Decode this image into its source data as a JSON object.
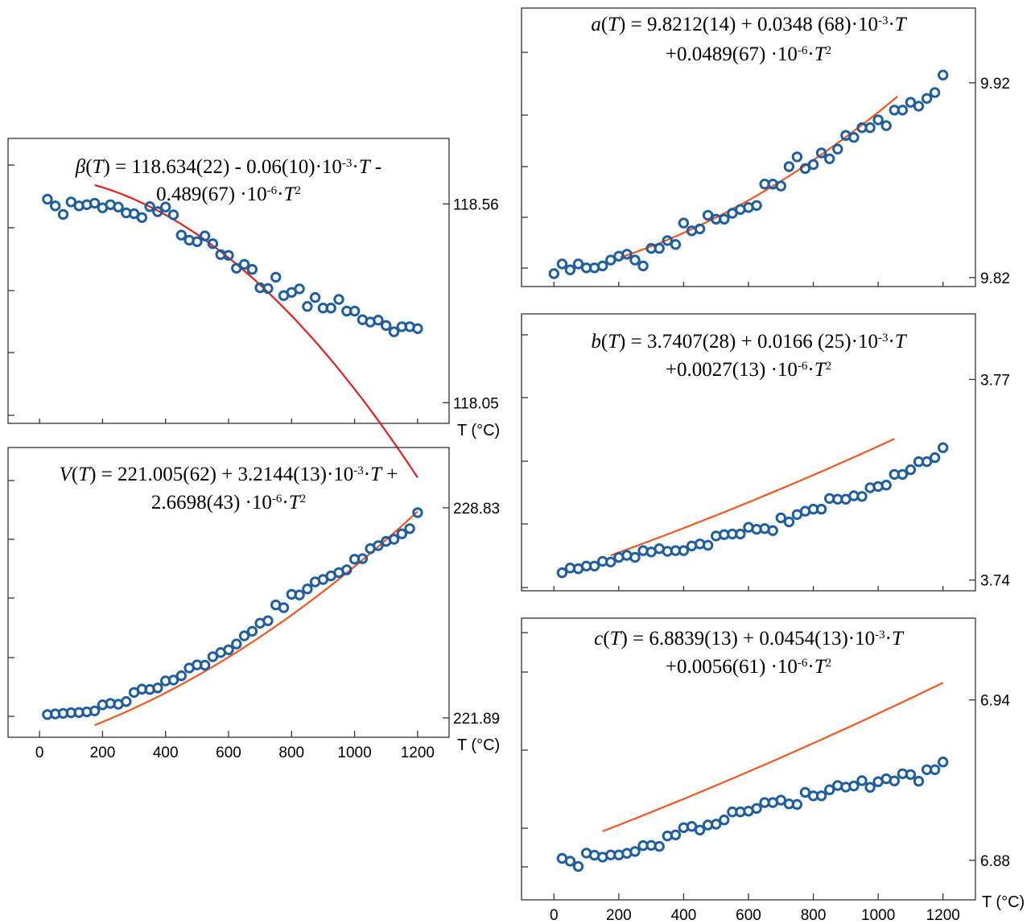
{
  "chart_data": [
    {
      "id": "beta",
      "type": "scatter",
      "equation": {
        "lhs_sym": "β",
        "lhs_arg": "T",
        "line1_rest": " = 118.634(22) - 0.06(10)·10",
        "line1_sup": "-3",
        "line1_tail": "·",
        "line1_T": "T",
        "line1_end": " -",
        "line2_pre": "0.489(67) ·10",
        "line2_sup1": "-6",
        "line2_mid": "·",
        "line2_T": "T",
        "line2_sup2": "2"
      },
      "xlabel": "T (°C)",
      "xlim": [
        -100,
        1300
      ],
      "ylim": [
        117.997,
        118.728
      ],
      "ytick_labels": [
        {
          "value": 118.56,
          "text": "118.56"
        },
        {
          "value": 118.05,
          "text": "118.05"
        }
      ],
      "x": [
        25,
        50,
        75,
        100,
        125,
        150,
        175,
        200,
        225,
        250,
        275,
        300,
        325,
        350,
        375,
        400,
        425,
        450,
        475,
        500,
        525,
        550,
        575,
        600,
        625,
        650,
        675,
        700,
        725,
        750,
        775,
        800,
        825,
        850,
        875,
        900,
        925,
        950,
        975,
        1000,
        1025,
        1050,
        1075,
        1100,
        1125,
        1150,
        1175,
        1200
      ],
      "y": [
        118.572,
        118.555,
        118.533,
        118.565,
        118.555,
        118.558,
        118.562,
        118.55,
        118.558,
        118.552,
        118.537,
        118.535,
        118.525,
        118.553,
        118.54,
        118.552,
        118.532,
        118.48,
        118.467,
        118.463,
        118.478,
        118.458,
        118.43,
        118.428,
        118.395,
        118.405,
        118.392,
        118.345,
        118.343,
        118.372,
        118.325,
        118.333,
        118.342,
        118.297,
        118.32,
        118.293,
        118.293,
        118.315,
        118.285,
        118.285,
        118.263,
        118.257,
        118.262,
        118.248,
        118.232,
        118.245,
        118.245,
        118.24
      ],
      "fit": {
        "x0": 175,
        "c0": 118.634,
        "c1": -6e-05,
        "c2": -4.89e-07
      }
    },
    {
      "id": "V",
      "type": "scatter",
      "equation": {
        "lhs_sym": "V",
        "lhs_arg": "T",
        "line1_rest": " = 221.005(62) + 3.2144(13)·10",
        "line1_sup": "-3",
        "line1_tail": "·",
        "line1_T": "T",
        "line1_end": " +",
        "line2_pre": "2.6698(43) ·10",
        "line2_sup1": "-6",
        "line2_mid": "·",
        "line2_T": "T",
        "line2_sup2": "2"
      },
      "xlabel": "T (°C)",
      "xlim": [
        -100,
        1300
      ],
      "ylim": [
        221.25,
        230.82
      ],
      "xtick_labels": [
        "0",
        "200",
        "400",
        "600",
        "800",
        "1000",
        "1200"
      ],
      "xticks": [
        0,
        200,
        400,
        600,
        800,
        1000,
        1200
      ],
      "ytick_labels": [
        {
          "value": 228.83,
          "text": "228.83"
        },
        {
          "value": 221.89,
          "text": "221.89"
        }
      ],
      "x": [
        25,
        50,
        75,
        100,
        125,
        150,
        175,
        200,
        225,
        250,
        275,
        300,
        325,
        350,
        375,
        400,
        425,
        450,
        475,
        500,
        525,
        550,
        575,
        600,
        625,
        650,
        675,
        700,
        725,
        750,
        775,
        800,
        825,
        850,
        875,
        900,
        925,
        950,
        975,
        1000,
        1025,
        1050,
        1075,
        1100,
        1125,
        1150,
        1175,
        1200
      ],
      "y": [
        222.0,
        222.02,
        222.04,
        222.06,
        222.07,
        222.09,
        222.12,
        222.32,
        222.37,
        222.34,
        222.43,
        222.73,
        222.84,
        222.83,
        222.88,
        223.11,
        223.14,
        223.28,
        223.54,
        223.64,
        223.63,
        223.91,
        224.05,
        224.14,
        224.33,
        224.6,
        224.75,
        225.02,
        225.1,
        225.62,
        225.53,
        225.97,
        225.95,
        226.15,
        226.38,
        226.46,
        226.58,
        226.69,
        226.78,
        227.13,
        227.15,
        227.48,
        227.58,
        227.72,
        227.79,
        227.97,
        228.14,
        228.67
      ],
      "fit": {
        "x0": 175,
        "c0": 221.005,
        "c1": 0.0032144,
        "c2": 2.6698e-06
      }
    },
    {
      "id": "a",
      "type": "scatter",
      "equation": {
        "lhs_sym": "a",
        "lhs_arg": "T",
        "line1_rest": " = 9.8212(14) + 0.0348 (68)·10",
        "line1_sup": "-3",
        "line1_tail": "·",
        "line1_T": "T",
        "line1_end": "",
        "line2_pre": "+0.0489(67) ·10",
        "line2_sup1": "-6",
        "line2_mid": "·",
        "line2_T": "T",
        "line2_sup2": "2"
      },
      "xlabel": "",
      "xlim": [
        -100,
        1300
      ],
      "ylim": [
        9.8154,
        9.9584
      ],
      "ytick_labels": [
        {
          "value": 9.92,
          "text": "9.92"
        },
        {
          "value": 9.82,
          "text": "9.82"
        }
      ],
      "x": [
        0,
        25,
        50,
        75,
        100,
        125,
        150,
        175,
        200,
        225,
        250,
        275,
        300,
        325,
        350,
        375,
        400,
        425,
        450,
        475,
        500,
        525,
        550,
        575,
        600,
        625,
        650,
        675,
        700,
        725,
        750,
        775,
        800,
        825,
        850,
        875,
        900,
        925,
        950,
        975,
        1000,
        1025,
        1050,
        1075,
        1100,
        1125,
        1150,
        1175,
        1200
      ],
      "y": [
        9.822,
        9.827,
        9.824,
        9.827,
        9.825,
        9.825,
        9.826,
        9.829,
        9.831,
        9.832,
        9.829,
        9.826,
        9.835,
        9.835,
        9.839,
        9.837,
        9.848,
        9.844,
        9.845,
        9.852,
        9.85,
        9.85,
        9.853,
        9.855,
        9.856,
        9.857,
        9.868,
        9.868,
        9.867,
        9.877,
        9.882,
        9.876,
        9.878,
        9.884,
        9.881,
        9.886,
        9.893,
        9.892,
        9.897,
        9.897,
        9.901,
        9.898,
        9.906,
        9.906,
        9.91,
        9.908,
        9.912,
        9.915,
        9.924
      ],
      "fit": {
        "x0": 205,
        "x1": 1060,
        "c0": 9.8212,
        "c1": 3.48e-05,
        "c2": 4.89e-08
      }
    },
    {
      "id": "b",
      "type": "scatter",
      "equation": {
        "lhs_sym": "b",
        "lhs_arg": "T",
        "line1_rest": " = 3.7407(28) + 0.0166 (25)·10",
        "line1_sup": "-3",
        "line1_tail": "·",
        "line1_T": "T",
        "line1_end": "",
        "line2_pre": "+0.0027(13) ·10",
        "line2_sup1": "-6",
        "line2_mid": "·",
        "line2_T": "T",
        "line2_sup2": "2"
      },
      "xlabel": "",
      "xlim": [
        -100,
        1300
      ],
      "ylim": [
        3.7384,
        3.7798
      ],
      "ytick_labels": [
        {
          "value": 3.77,
          "text": "3.77"
        },
        {
          "value": 3.74,
          "text": "3.74"
        }
      ],
      "x": [
        25,
        50,
        75,
        100,
        125,
        150,
        175,
        200,
        225,
        250,
        275,
        300,
        325,
        350,
        375,
        400,
        425,
        450,
        475,
        500,
        525,
        550,
        575,
        600,
        625,
        650,
        675,
        700,
        725,
        750,
        775,
        800,
        825,
        850,
        875,
        900,
        925,
        950,
        975,
        1000,
        1025,
        1050,
        1075,
        1100,
        1125,
        1150,
        1175,
        1200
      ],
      "y": [
        3.7411,
        3.7418,
        3.7417,
        3.7421,
        3.7421,
        3.7428,
        3.7427,
        3.7434,
        3.7437,
        3.7434,
        3.7444,
        3.7442,
        3.7447,
        3.7443,
        3.7444,
        3.7444,
        3.7451,
        3.7454,
        3.7452,
        3.7466,
        3.7468,
        3.7469,
        3.7469,
        3.7479,
        3.7476,
        3.7477,
        3.7474,
        3.7493,
        3.7487,
        3.7498,
        3.7503,
        3.7506,
        3.7506,
        3.7522,
        3.7521,
        3.7521,
        3.7526,
        3.7525,
        3.7538,
        3.754,
        3.7542,
        3.7558,
        3.7558,
        3.7565,
        3.7577,
        3.7577,
        3.7583,
        3.7598
      ],
      "fit": {
        "x0": 175,
        "x1": 1050,
        "c0": 3.7407,
        "c1": 1.66e-05,
        "c2": 2.7e-09
      }
    },
    {
      "id": "c",
      "type": "scatter",
      "equation": {
        "lhs_sym": "c",
        "lhs_arg": "T",
        "line1_rest": " = 6.8839(13) + 0.0454(13)·10",
        "line1_sup": "-3",
        "line1_tail": "·",
        "line1_T": "T",
        "line1_end": "",
        "line2_pre": "+0.0056(61) ·10",
        "line2_sup1": "-6",
        "line2_mid": "·",
        "line2_T": "T",
        "line2_sup2": "2"
      },
      "xlabel": "T (°C)",
      "xlim": [
        -100,
        1300
      ],
      "ylim": [
        6.8652,
        6.9706
      ],
      "xtick_labels": [
        "0",
        "200",
        "400",
        "600",
        "800",
        "1000",
        "1200"
      ],
      "xticks": [
        0,
        200,
        400,
        600,
        800,
        1000,
        1200
      ],
      "ytick_labels": [
        {
          "value": 6.94,
          "text": "6.94"
        },
        {
          "value": 6.88,
          "text": "6.88"
        }
      ],
      "x": [
        25,
        50,
        75,
        100,
        125,
        150,
        175,
        200,
        225,
        250,
        275,
        300,
        325,
        350,
        375,
        400,
        425,
        450,
        475,
        500,
        525,
        550,
        575,
        600,
        625,
        650,
        675,
        700,
        725,
        750,
        775,
        800,
        825,
        850,
        875,
        900,
        925,
        950,
        975,
        1000,
        1025,
        1050,
        1075,
        1100,
        1125,
        1150,
        1175,
        1200
      ],
      "y": [
        6.8807,
        6.8797,
        6.8777,
        6.8827,
        6.8819,
        6.8812,
        6.882,
        6.882,
        6.8826,
        6.8833,
        6.8855,
        6.8856,
        6.8852,
        6.8891,
        6.8895,
        6.8922,
        6.8927,
        6.8913,
        6.8932,
        6.8935,
        6.8951,
        6.8981,
        6.8981,
        6.8984,
        6.8994,
        6.9016,
        6.9016,
        6.9025,
        6.9011,
        6.9009,
        6.9054,
        6.9041,
        6.9041,
        6.9064,
        6.908,
        6.9074,
        6.9078,
        6.9098,
        6.9073,
        6.9094,
        6.9105,
        6.9097,
        6.9124,
        6.9121,
        6.9096,
        6.9139,
        6.9139,
        6.9168
      ],
      "fit": {
        "x0": 150,
        "c0": 6.8839,
        "c1": 4.54e-05,
        "c2": 5.6e-09
      }
    }
  ]
}
